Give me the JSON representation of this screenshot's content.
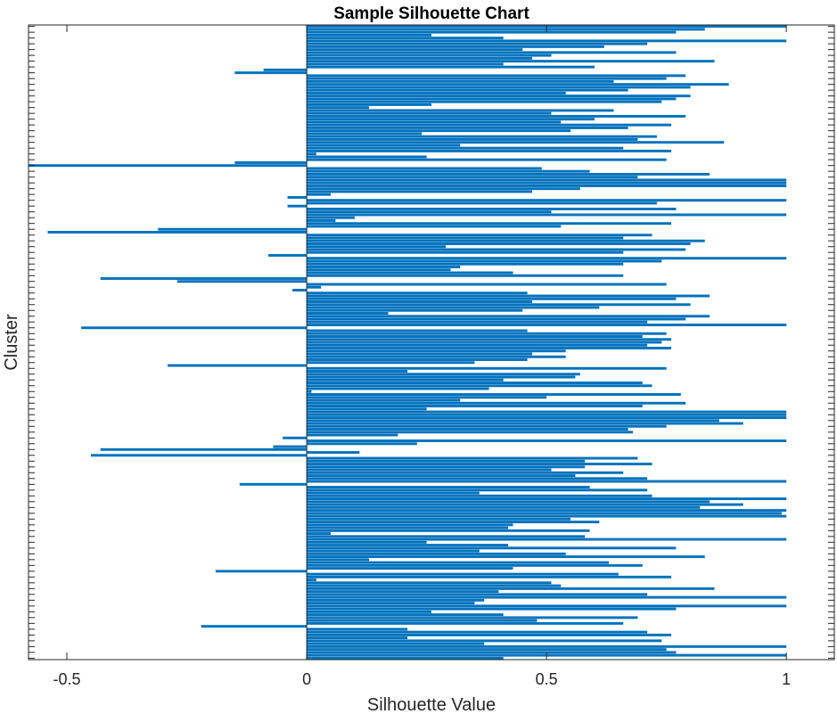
{
  "chart_data": {
    "type": "bar",
    "orientation": "horizontal",
    "title": "Sample Silhouette Chart",
    "xlabel": "Silhouette Value",
    "ylabel": "Cluster",
    "xlim": [
      -0.58,
      1.1
    ],
    "x_ticks": [
      {
        "value": -0.5,
        "label": "-0.5"
      },
      {
        "value": 0,
        "label": "0"
      },
      {
        "value": 0.5,
        "label": "0.5"
      },
      {
        "value": 1,
        "label": "1"
      }
    ],
    "grid": false,
    "series_color": "#0072BD",
    "values": [
      1.0,
      0.83,
      0.77,
      0.26,
      0.41,
      1.0,
      0.71,
      0.62,
      0.45,
      0.77,
      0.51,
      0.47,
      0.85,
      0.41,
      0.6,
      -0.09,
      -0.15,
      0.79,
      0.75,
      0.64,
      0.88,
      0.8,
      0.67,
      0.54,
      0.8,
      0.77,
      0.74,
      0.26,
      0.13,
      0.64,
      0.51,
      0.79,
      0.6,
      0.53,
      0.76,
      0.67,
      0.55,
      0.24,
      0.73,
      0.69,
      0.87,
      0.32,
      0.66,
      0.76,
      0.02,
      0.25,
      0.75,
      -0.15,
      -0.58,
      0.49,
      0.59,
      0.84,
      0.69,
      1.0,
      1.0,
      1.0,
      0.57,
      0.47,
      0.05,
      -0.04,
      1.0,
      0.73,
      -0.04,
      0.77,
      0.51,
      1.0,
      0.1,
      0.06,
      0.76,
      0.53,
      -0.31,
      -0.54,
      0.72,
      0.66,
      0.83,
      0.8,
      0.29,
      0.79,
      0.66,
      -0.08,
      1.0,
      0.74,
      0.66,
      0.32,
      0.3,
      0.43,
      0.66,
      -0.43,
      -0.27,
      0.75,
      0.03,
      -0.03,
      0.46,
      0.84,
      0.77,
      0.47,
      0.8,
      0.61,
      0.45,
      0.17,
      0.84,
      0.79,
      0.71,
      1.0,
      -0.47,
      0.46,
      0.75,
      0.7,
      0.76,
      0.74,
      0.71,
      0.76,
      0.54,
      0.47,
      0.54,
      0.46,
      0.35,
      -0.29,
      0.75,
      0.21,
      0.57,
      0.56,
      0.41,
      0.7,
      0.72,
      0.38,
      0.01,
      0.78,
      0.5,
      0.32,
      0.79,
      0.7,
      0.25,
      1.0,
      1.0,
      1.0,
      0.86,
      0.91,
      0.75,
      0.67,
      0.68,
      0.19,
      -0.05,
      1.0,
      0.23,
      -0.07,
      -0.43,
      0.11,
      -0.45,
      0.69,
      0.58,
      0.72,
      0.58,
      0.51,
      0.66,
      0.56,
      0.71,
      1.0,
      -0.14,
      0.59,
      0.71,
      0.36,
      0.72,
      1.0,
      0.84,
      0.91,
      0.82,
      1.0,
      0.99,
      1.0,
      0.55,
      0.61,
      0.43,
      0.42,
      0.59,
      0.05,
      0.58,
      1.0,
      0.25,
      0.42,
      0.77,
      0.36,
      0.54,
      0.83,
      0.13,
      0.63,
      0.7,
      0.43,
      -0.19,
      0.65,
      0.76,
      0.02,
      0.51,
      0.53,
      0.85,
      0.4,
      0.71,
      1.0,
      0.37,
      0.35,
      1.0,
      0.77,
      0.26,
      0.41,
      0.69,
      0.48,
      0.66,
      -0.22,
      0.21,
      0.71,
      0.76,
      0.21,
      0.74,
      0.37,
      1.0,
      0.75,
      0.77,
      1.0,
      0.41
    ]
  }
}
